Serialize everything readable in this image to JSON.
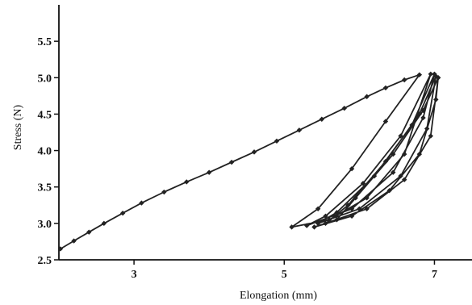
{
  "chart_data": {
    "type": "line",
    "title": "",
    "xlabel": "Elongation (mm)",
    "ylabel": "Stress (N)",
    "xlim": [
      2,
      7.5
    ],
    "ylim": [
      2.5,
      6.0
    ],
    "x_ticks": [
      {
        "value": 3,
        "label": "3"
      },
      {
        "value": 5,
        "label": "5"
      },
      {
        "value": 7,
        "label": "7"
      }
    ],
    "y_ticks": [
      {
        "value": 2.5,
        "label": "2.5"
      },
      {
        "value": 3.0,
        "label": "3.0"
      },
      {
        "value": 3.5,
        "label": "3.5"
      },
      {
        "value": 4.0,
        "label": "4.0"
      },
      {
        "value": 4.5,
        "label": "4.5"
      },
      {
        "value": 5.0,
        "label": "5.0"
      },
      {
        "value": 5.5,
        "label": "5.5"
      }
    ],
    "grid": false,
    "legend": "none",
    "color": "#222222",
    "series": [
      {
        "values": [
          [
            2.02,
            2.65
          ],
          [
            2.2,
            2.76
          ],
          [
            2.4,
            2.88
          ],
          [
            2.6,
            3.0
          ],
          [
            2.85,
            3.14
          ],
          [
            3.1,
            3.28
          ],
          [
            3.4,
            3.43
          ],
          [
            3.7,
            3.57
          ],
          [
            4.0,
            3.7
          ],
          [
            4.3,
            3.84
          ],
          [
            4.6,
            3.98
          ],
          [
            4.9,
            4.13
          ],
          [
            5.2,
            4.28
          ],
          [
            5.5,
            4.43
          ],
          [
            5.8,
            4.58
          ],
          [
            6.1,
            4.74
          ],
          [
            6.35,
            4.86
          ],
          [
            6.6,
            4.97
          ],
          [
            6.8,
            5.04
          ],
          [
            6.35,
            4.4
          ],
          [
            5.9,
            3.75
          ],
          [
            5.45,
            3.2
          ],
          [
            5.1,
            2.95
          ],
          [
            5.6,
            3.05
          ],
          [
            6.1,
            3.35
          ],
          [
            6.6,
            3.95
          ],
          [
            6.95,
            5.05
          ],
          [
            6.55,
            4.2
          ],
          [
            6.05,
            3.55
          ],
          [
            5.55,
            3.1
          ],
          [
            5.3,
            2.97
          ],
          [
            5.9,
            3.2
          ],
          [
            6.45,
            3.7
          ],
          [
            6.85,
            4.45
          ],
          [
            7.0,
            5.05
          ],
          [
            6.7,
            4.35
          ],
          [
            6.2,
            3.65
          ],
          [
            5.7,
            3.15
          ],
          [
            5.45,
            3.0
          ],
          [
            6.0,
            3.2
          ],
          [
            6.55,
            3.65
          ],
          [
            6.9,
            4.3
          ],
          [
            7.02,
            5.02
          ],
          [
            6.8,
            4.5
          ],
          [
            6.35,
            3.85
          ],
          [
            5.85,
            3.25
          ],
          [
            5.55,
            3.0
          ],
          [
            6.1,
            3.2
          ],
          [
            6.6,
            3.6
          ],
          [
            6.95,
            4.2
          ],
          [
            7.05,
            5.0
          ],
          [
            6.85,
            4.55
          ],
          [
            6.45,
            3.95
          ],
          [
            5.95,
            3.35
          ],
          [
            5.7,
            3.05
          ],
          [
            5.4,
            2.95
          ],
          [
            5.9,
            3.1
          ],
          [
            6.4,
            3.45
          ],
          [
            6.8,
            3.95
          ],
          [
            7.02,
            4.7
          ],
          [
            7.05,
            5.0
          ]
        ]
      }
    ]
  }
}
